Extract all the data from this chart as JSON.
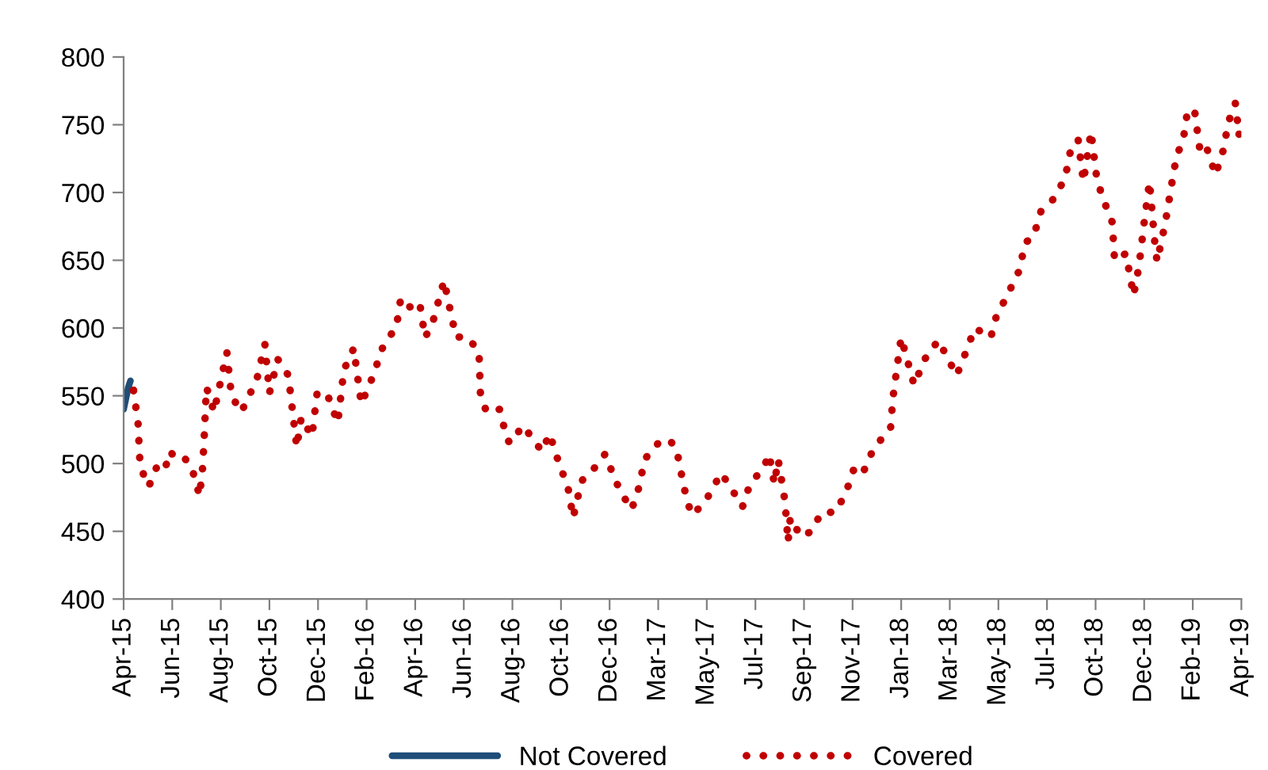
{
  "chart_data": {
    "type": "line",
    "xlim": [
      "2015-04-01",
      "2019-04-12"
    ],
    "xticks": [
      {
        "value": "2015-04-01",
        "label": "Apr-15"
      },
      {
        "value": "2015-06-04",
        "label": "Jun-15"
      },
      {
        "value": "2015-08-07",
        "label": "Aug-15"
      },
      {
        "value": "2015-10-10",
        "label": "Oct-15"
      },
      {
        "value": "2015-12-13",
        "label": "Dec-15"
      },
      {
        "value": "2016-02-15",
        "label": "Feb-16"
      },
      {
        "value": "2016-04-19",
        "label": "Apr-16"
      },
      {
        "value": "2016-06-22",
        "label": "Jun-16"
      },
      {
        "value": "2016-08-25",
        "label": "Aug-16"
      },
      {
        "value": "2016-10-28",
        "label": "Oct-16"
      },
      {
        "value": "2016-12-31",
        "label": "Dec-16"
      },
      {
        "value": "2017-03-05",
        "label": "Mar-17"
      },
      {
        "value": "2017-05-08",
        "label": "May-17"
      },
      {
        "value": "2017-07-11",
        "label": "Jul-17"
      },
      {
        "value": "2017-09-13",
        "label": "Sep-17"
      },
      {
        "value": "2017-11-16",
        "label": "Nov-17"
      },
      {
        "value": "2018-01-19",
        "label": "Jan-18"
      },
      {
        "value": "2018-03-24",
        "label": "Mar-18"
      },
      {
        "value": "2018-05-27",
        "label": "May-18"
      },
      {
        "value": "2018-07-30",
        "label": "Jul-18"
      },
      {
        "value": "2018-10-02",
        "label": "Oct-18"
      },
      {
        "value": "2018-12-05",
        "label": "Dec-18"
      },
      {
        "value": "2019-02-07",
        "label": "Feb-19"
      },
      {
        "value": "2019-04-12",
        "label": "Apr-19"
      }
    ],
    "ylim": [
      400,
      800
    ],
    "yticks": [
      400,
      450,
      500,
      550,
      600,
      650,
      700,
      750,
      800
    ],
    "grid": false,
    "legend": "bottom",
    "marker": "none",
    "series": [
      {
        "name": "Not Covered",
        "color": "#1f4e79",
        "line_style": "solid",
        "x": [
          "2015-04-01",
          "2015-04-04",
          "2015-04-07",
          "2015-04-10"
        ],
        "values": [
          540,
          548,
          556,
          561
        ]
      },
      {
        "name": "Covered",
        "color": "#c00000",
        "line_style": "dotted",
        "x": [
          "2015-04-14",
          "2015-04-20",
          "2015-04-22",
          "2015-04-24",
          "2015-04-28",
          "2015-05-04",
          "2015-05-15",
          "2015-05-25",
          "2015-06-01",
          "2015-06-07",
          "2015-06-17",
          "2015-06-28",
          "2015-07-04",
          "2015-07-10",
          "2015-07-14",
          "2015-07-16",
          "2015-07-19",
          "2015-07-23",
          "2015-07-29",
          "2015-08-08",
          "2015-08-15",
          "2015-08-21",
          "2015-09-03",
          "2015-09-13",
          "2015-09-23",
          "2015-10-04",
          "2015-10-10",
          "2015-10-21",
          "2015-11-04",
          "2015-11-15",
          "2015-11-21",
          "2015-12-05",
          "2015-12-12",
          "2015-12-26",
          "2016-01-08",
          "2016-01-16",
          "2016-01-29",
          "2016-02-08",
          "2016-02-23",
          "2016-03-08",
          "2016-03-15",
          "2016-03-25",
          "2016-03-31",
          "2016-04-15",
          "2016-04-25",
          "2016-05-02",
          "2016-05-12",
          "2016-05-27",
          "2016-06-06",
          "2016-06-12",
          "2016-06-23",
          "2016-07-03",
          "2016-07-12",
          "2016-07-14",
          "2016-07-22",
          "2016-08-08",
          "2016-08-18",
          "2016-08-22",
          "2016-09-08",
          "2016-10-03",
          "2016-10-13",
          "2016-10-26",
          "2016-11-06",
          "2016-11-13",
          "2016-11-24",
          "2016-12-15",
          "2016-12-25",
          "2017-01-08",
          "2017-01-18",
          "2017-01-29",
          "2017-02-08",
          "2017-02-15",
          "2017-03-05",
          "2017-03-19",
          "2017-03-29",
          "2017-04-05",
          "2017-04-12",
          "2017-04-19",
          "2017-05-06",
          "2017-05-17",
          "2017-05-27",
          "2017-06-10",
          "2017-06-24",
          "2017-07-04",
          "2017-07-22",
          "2017-07-29",
          "2017-08-05",
          "2017-08-10",
          "2017-08-19",
          "2017-08-23",
          "2017-08-26",
          "2017-09-09",
          "2017-09-23",
          "2017-10-06",
          "2017-10-24",
          "2017-11-07",
          "2017-11-17",
          "2017-11-28",
          "2017-12-12",
          "2017-12-29",
          "2018-01-05",
          "2018-01-08",
          "2018-01-14",
          "2018-01-19",
          "2018-02-05",
          "2018-02-19",
          "2018-03-09",
          "2018-04-02",
          "2018-04-12",
          "2018-04-26",
          "2018-05-17",
          "2018-05-24",
          "2018-06-11",
          "2018-06-24",
          "2018-07-01",
          "2018-07-12",
          "2018-07-22",
          "2018-08-09",
          "2018-08-23",
          "2018-08-30",
          "2018-09-09",
          "2018-09-16",
          "2018-09-26",
          "2018-10-03",
          "2018-10-10",
          "2018-10-24",
          "2018-10-27",
          "2018-11-11",
          "2018-11-21",
          "2018-11-28",
          "2018-12-05",
          "2018-12-12",
          "2018-12-19",
          "2018-12-22",
          "2019-01-02",
          "2019-01-09",
          "2019-01-16",
          "2019-01-26",
          "2019-01-30",
          "2019-02-09",
          "2019-02-16",
          "2019-02-23",
          "2019-03-09",
          "2019-03-19",
          "2019-03-26",
          "2019-04-04",
          "2019-04-09"
        ],
        "values": [
          554,
          530,
          505,
          499,
          490,
          483,
          498,
          495,
          509,
          505,
          506,
          499,
          489,
          476,
          497,
          518,
          556,
          550,
          538,
          564,
          582,
          550,
          538,
          550,
          561,
          588,
          552,
          577,
          565,
          512,
          534,
          520,
          553,
          550,
          530,
          569,
          585,
          544,
          564,
          587,
          593,
          600,
          622,
          614,
          618,
          593,
          604,
          635,
          608,
          593,
          594,
          589,
          582,
          550,
          538,
          540,
          518,
          515,
          528,
          509,
          522,
          499,
          483,
          460,
          487,
          499,
          507,
          487,
          476,
          466,
          483,
          503,
          515,
          518,
          511,
          491,
          472,
          462,
          472,
          483,
          493,
          481,
          468,
          485,
          497,
          507,
          485,
          503,
          472,
          442,
          460,
          446,
          450,
          464,
          464,
          478,
          495,
          491,
          509,
          522,
          526,
          548,
          573,
          593,
          558,
          577,
          591,
          565,
          579,
          600,
          593,
          608,
          628,
          643,
          663,
          667,
          686,
          696,
          711,
          731,
          739,
          708,
          745,
          713,
          698,
          678,
          650,
          655,
          624,
          645,
          678,
          708,
          663,
          649,
          678,
          702,
          725,
          741,
          756,
          762,
          733,
          737,
          713,
          731,
          752,
          766,
          743
        ]
      }
    ]
  }
}
